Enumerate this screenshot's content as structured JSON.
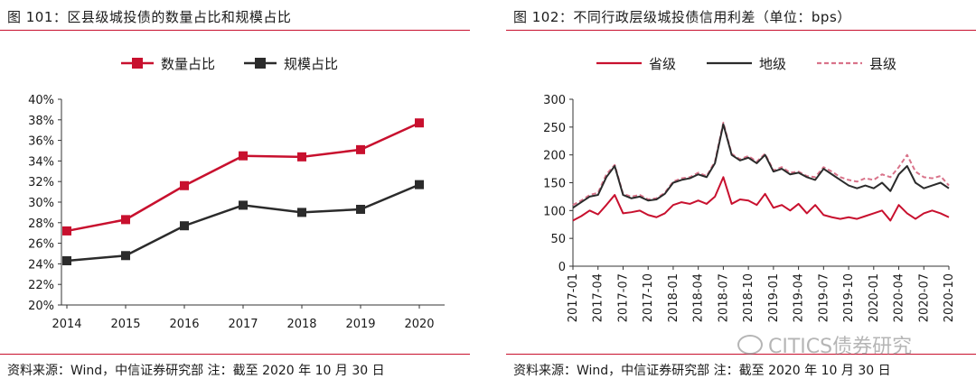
{
  "left": {
    "title": "图 101：区县级城投债的数量占比和规模占比",
    "source": "资料来源：Wind，中信证券研究部 注：截至 2020 年 10 月 30 日",
    "chart_data": {
      "type": "line",
      "categories": [
        "2014",
        "2015",
        "2016",
        "2017",
        "2018",
        "2019",
        "2020"
      ],
      "ylim": [
        20,
        40
      ],
      "yticks": [
        "20%",
        "22%",
        "24%",
        "26%",
        "28%",
        "30%",
        "32%",
        "34%",
        "36%",
        "38%",
        "40%"
      ],
      "grid": false,
      "legend_position": "top",
      "series": [
        {
          "name": "数量占比",
          "color": "#c8102e",
          "marker": "square",
          "values": [
            27.2,
            28.3,
            31.6,
            34.5,
            34.4,
            35.1,
            37.7
          ]
        },
        {
          "name": "规模占比",
          "color": "#2b2b2b",
          "marker": "square",
          "values": [
            24.3,
            24.8,
            27.7,
            29.7,
            29.0,
            29.3,
            31.7
          ]
        }
      ]
    }
  },
  "right": {
    "title": "图 102：不同行政层级城投债信用利差（单位：bps）",
    "source": "资料来源：Wind，中信证券研究部 注：截至 2020 年 10 月 30 日",
    "chart_data": {
      "type": "line",
      "ylim": [
        0,
        300
      ],
      "yticks": [
        "0",
        "50",
        "100",
        "150",
        "200",
        "250",
        "300"
      ],
      "xticks": [
        "2017-01",
        "2017-04",
        "2017-07",
        "2017-10",
        "2018-01",
        "2018-04",
        "2018-07",
        "2018-10",
        "2019-01",
        "2019-04",
        "2019-07",
        "2019-10",
        "2020-01",
        "2020-04",
        "2020-07",
        "2020-10"
      ],
      "x_range": [
        "2017-01",
        "2020-10"
      ],
      "grid": false,
      "legend_position": "top",
      "series": [
        {
          "name": "省级",
          "color": "#c8102e",
          "style": "solid",
          "x": [
            "2017-01",
            "2017-02",
            "2017-03",
            "2017-04",
            "2017-05",
            "2017-06",
            "2017-07",
            "2017-08",
            "2017-09",
            "2017-10",
            "2017-11",
            "2017-12",
            "2018-01",
            "2018-02",
            "2018-03",
            "2018-04",
            "2018-05",
            "2018-06",
            "2018-07",
            "2018-08",
            "2018-09",
            "2018-10",
            "2018-11",
            "2018-12",
            "2019-01",
            "2019-02",
            "2019-03",
            "2019-04",
            "2019-05",
            "2019-06",
            "2019-07",
            "2019-08",
            "2019-09",
            "2019-10",
            "2019-11",
            "2019-12",
            "2020-01",
            "2020-02",
            "2020-03",
            "2020-04",
            "2020-05",
            "2020-06",
            "2020-07",
            "2020-08",
            "2020-09",
            "2020-10"
          ],
          "values": [
            82,
            90,
            100,
            93,
            110,
            128,
            95,
            97,
            100,
            92,
            88,
            95,
            110,
            115,
            112,
            118,
            112,
            125,
            160,
            112,
            120,
            118,
            110,
            130,
            105,
            110,
            100,
            112,
            95,
            110,
            92,
            88,
            85,
            88,
            85,
            90,
            95,
            100,
            82,
            110,
            95,
            85,
            95,
            100,
            95,
            88
          ]
        },
        {
          "name": "地级",
          "color": "#2b2b2b",
          "style": "solid",
          "x": [
            "2017-01",
            "2017-02",
            "2017-03",
            "2017-04",
            "2017-05",
            "2017-06",
            "2017-07",
            "2017-08",
            "2017-09",
            "2017-10",
            "2017-11",
            "2017-12",
            "2018-01",
            "2018-02",
            "2018-03",
            "2018-04",
            "2018-05",
            "2018-06",
            "2018-07",
            "2018-08",
            "2018-09",
            "2018-10",
            "2018-11",
            "2018-12",
            "2019-01",
            "2019-02",
            "2019-03",
            "2019-04",
            "2019-05",
            "2019-06",
            "2019-07",
            "2019-08",
            "2019-09",
            "2019-10",
            "2019-11",
            "2019-12",
            "2020-01",
            "2020-02",
            "2020-03",
            "2020-04",
            "2020-05",
            "2020-06",
            "2020-07",
            "2020-08",
            "2020-09",
            "2020-10"
          ],
          "values": [
            105,
            115,
            125,
            128,
            160,
            180,
            128,
            122,
            125,
            118,
            120,
            130,
            150,
            155,
            158,
            165,
            160,
            185,
            255,
            200,
            190,
            195,
            185,
            200,
            170,
            175,
            165,
            168,
            160,
            155,
            175,
            165,
            155,
            145,
            140,
            145,
            140,
            150,
            135,
            165,
            180,
            150,
            140,
            145,
            150,
            140
          ]
        },
        {
          "name": "县级",
          "color": "#d9738a",
          "style": "dashed",
          "x": [
            "2017-01",
            "2017-02",
            "2017-03",
            "2017-04",
            "2017-05",
            "2017-06",
            "2017-07",
            "2017-08",
            "2017-09",
            "2017-10",
            "2017-11",
            "2017-12",
            "2018-01",
            "2018-02",
            "2018-03",
            "2018-04",
            "2018-05",
            "2018-06",
            "2018-07",
            "2018-08",
            "2018-09",
            "2018-10",
            "2018-11",
            "2018-12",
            "2019-01",
            "2019-02",
            "2019-03",
            "2019-04",
            "2019-05",
            "2019-06",
            "2019-07",
            "2019-08",
            "2019-09",
            "2019-10",
            "2019-11",
            "2019-12",
            "2020-01",
            "2020-02",
            "2020-03",
            "2020-04",
            "2020-05",
            "2020-06",
            "2020-07",
            "2020-08",
            "2020-09",
            "2020-10"
          ],
          "values": [
            110,
            118,
            128,
            132,
            165,
            182,
            130,
            125,
            128,
            120,
            122,
            132,
            152,
            158,
            160,
            168,
            162,
            188,
            258,
            202,
            192,
            198,
            188,
            202,
            172,
            178,
            168,
            170,
            162,
            160,
            178,
            170,
            160,
            155,
            152,
            158,
            155,
            165,
            160,
            178,
            200,
            170,
            160,
            158,
            162,
            145
          ]
        }
      ]
    }
  },
  "watermark": "CITICS债券研究"
}
